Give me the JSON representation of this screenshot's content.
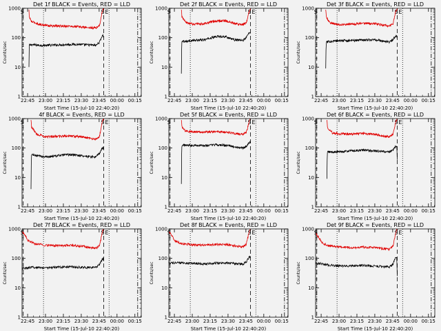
{
  "figure": {
    "ylabel": "Counts/sec",
    "xlabel": "Start Time (15-Jul-10 22:40:20)",
    "x_ticks": [
      "22:45",
      "23:00",
      "23:15",
      "23:30",
      "23:45",
      "00:00",
      "00:15"
    ],
    "y_ticks": [
      "1",
      "10",
      "100",
      "1000"
    ],
    "markers": {
      "s": "S",
      "e": "E"
    },
    "colors": {
      "events": "#000000",
      "lld": "#e00000",
      "axes": "#000000",
      "background": "#f2f2f2"
    }
  },
  "chart_data": [
    {
      "type": "line",
      "title": "Det 1f BLACK = Events, RED = LLD",
      "xlabel": "Start Time (15-Jul-10 22:40:20)",
      "ylabel": "Counts/sec",
      "scale": "log",
      "ylim": [
        1,
        1000
      ],
      "x_unit": "minutes since 22:40:20",
      "x": [
        5.8,
        6,
        8,
        15,
        25,
        35,
        45,
        55,
        62,
        65,
        66,
        67,
        68,
        68.5
      ],
      "series": [
        {
          "name": "Events",
          "values": [
            10,
            55,
            58,
            55,
            56,
            58,
            60,
            57,
            55,
            70,
            90,
            110,
            120,
            100
          ]
        },
        {
          "name": "LLD",
          "values": [
            900,
            500,
            350,
            280,
            250,
            250,
            240,
            220,
            215,
            260,
            400,
            700,
            900,
            1000
          ]
        }
      ],
      "vlines": [
        {
          "x": 1,
          "style": "dash"
        },
        {
          "x": 18,
          "style": "dot"
        },
        {
          "x": 68.5,
          "style": "dash"
        },
        {
          "x": 73,
          "style": "dot"
        },
        {
          "x": 97,
          "style": "dashdot"
        }
      ]
    },
    {
      "type": "line",
      "title": "Det 2f BLACK = Events, RED = LLD",
      "xlabel": "Start Time (15-Jul-10 22:40:20)",
      "ylabel": "Counts/sec",
      "scale": "log",
      "ylim": [
        1,
        1000
      ],
      "x_unit": "minutes since 22:40:20",
      "x": [
        10.5,
        11,
        14,
        20,
        30,
        40,
        47,
        55,
        62,
        65,
        66,
        67,
        68,
        68.5
      ],
      "series": [
        {
          "name": "Events",
          "values": [
            6,
            80,
            75,
            80,
            85,
            110,
            110,
            85,
            80,
            100,
            120,
            140,
            150,
            150
          ]
        },
        {
          "name": "LLD",
          "values": [
            900,
            500,
            330,
            290,
            300,
            370,
            380,
            300,
            280,
            330,
            450,
            700,
            900,
            1000
          ]
        }
      ],
      "vlines": [
        {
          "x": 1,
          "style": "dash"
        },
        {
          "x": 18,
          "style": "dot"
        },
        {
          "x": 68.5,
          "style": "dash"
        },
        {
          "x": 73,
          "style": "dot"
        },
        {
          "x": 97,
          "style": "dashdot"
        }
      ]
    },
    {
      "type": "line",
      "title": "Det 3f BLACK = Events, RED = LLD",
      "xlabel": "Start Time (15-Jul-10 22:40:20)",
      "ylabel": "Counts/sec",
      "scale": "log",
      "ylim": [
        1,
        1000
      ],
      "x_unit": "minutes since 22:40:20",
      "x": [
        8.5,
        9,
        12,
        20,
        30,
        40,
        50,
        58,
        62,
        65,
        66,
        67,
        68,
        68.5
      ],
      "series": [
        {
          "name": "Events",
          "values": [
            9,
            70,
            75,
            80,
            80,
            85,
            85,
            75,
            72,
            85,
            100,
            110,
            115,
            100
          ]
        },
        {
          "name": "LLD",
          "values": [
            900,
            500,
            320,
            280,
            290,
            310,
            300,
            260,
            250,
            300,
            450,
            700,
            900,
            1000
          ]
        }
      ],
      "vlines": [
        {
          "x": 1,
          "style": "dash"
        },
        {
          "x": 18,
          "style": "dot"
        },
        {
          "x": 68.5,
          "style": "dash"
        },
        {
          "x": 73,
          "style": "dot"
        },
        {
          "x": 97,
          "style": "dashdot"
        }
      ]
    },
    {
      "type": "line",
      "title": "4f BLACK = Events, RED = LLD",
      "xlabel": "Start Time (15-Jul-10 22:40:20)",
      "ylabel": "Counts/sec",
      "scale": "log",
      "ylim": [
        1,
        1000
      ],
      "x_unit": "minutes since 22:40:20",
      "x": [
        7.5,
        8,
        12,
        20,
        30,
        40,
        50,
        58,
        62,
        65,
        66,
        67,
        68,
        68.5
      ],
      "series": [
        {
          "name": "Events",
          "values": [
            4,
            60,
            55,
            50,
            55,
            60,
            55,
            50,
            50,
            65,
            80,
            95,
            100,
            90
          ]
        },
        {
          "name": "LLD",
          "values": [
            900,
            500,
            300,
            240,
            250,
            260,
            240,
            210,
            200,
            250,
            400,
            700,
            900,
            1000
          ]
        }
      ],
      "vlines": [
        {
          "x": 1,
          "style": "dash"
        },
        {
          "x": 18,
          "style": "dot"
        },
        {
          "x": 68.5,
          "style": "dash"
        },
        {
          "x": 73,
          "style": "dot"
        },
        {
          "x": 97,
          "style": "dashdot"
        }
      ]
    },
    {
      "type": "line",
      "title": "Det 5f BLACK = Events, RED = LLD",
      "xlabel": "Start Time (15-Jul-10 22:40:20)",
      "ylabel": "Counts/sec",
      "scale": "log",
      "ylim": [
        1,
        1000
      ],
      "x_unit": "minutes since 22:40:20",
      "x": [
        10.5,
        11,
        14,
        20,
        30,
        40,
        50,
        58,
        62,
        65,
        66,
        67,
        68,
        68.5
      ],
      "series": [
        {
          "name": "Events",
          "values": [
            6,
            130,
            125,
            125,
            120,
            130,
            120,
            105,
            100,
            115,
            130,
            150,
            160,
            150
          ]
        },
        {
          "name": "LLD",
          "values": [
            900,
            500,
            380,
            360,
            350,
            360,
            340,
            300,
            290,
            340,
            450,
            700,
            900,
            1000
          ]
        }
      ],
      "vlines": [
        {
          "x": 1,
          "style": "dash"
        },
        {
          "x": 18,
          "style": "dot"
        },
        {
          "x": 68.5,
          "style": "dash"
        },
        {
          "x": 73,
          "style": "dot"
        },
        {
          "x": 97,
          "style": "dashdot"
        }
      ]
    },
    {
      "type": "line",
      "title": "Det 6f BLACK = Events, RED = LLD",
      "xlabel": "Start Time (15-Jul-10 22:40:20)",
      "ylabel": "Counts/sec",
      "scale": "log",
      "ylim": [
        1,
        1000
      ],
      "x_unit": "minutes since 22:40:20",
      "x": [
        9.5,
        10,
        14,
        20,
        30,
        40,
        50,
        58,
        62,
        65,
        66,
        67,
        68,
        68.5
      ],
      "series": [
        {
          "name": "Events",
          "values": [
            9,
            75,
            72,
            75,
            80,
            85,
            80,
            75,
            72,
            85,
            100,
            115,
            120,
            40
          ]
        },
        {
          "name": "LLD",
          "values": [
            900,
            500,
            330,
            300,
            300,
            310,
            290,
            250,
            240,
            300,
            450,
            700,
            900,
            1000
          ]
        }
      ],
      "vlines": [
        {
          "x": 1,
          "style": "dash"
        },
        {
          "x": 18,
          "style": "dot"
        },
        {
          "x": 68.5,
          "style": "dash"
        },
        {
          "x": 73,
          "style": "dot"
        },
        {
          "x": 97,
          "style": "dashdot"
        }
      ]
    },
    {
      "type": "line",
      "title": "Det 7f BLACK = Events, RED = LLD",
      "xlabel": "Start Time (15-Jul-10 22:40:20)",
      "ylabel": "Counts/sec",
      "scale": "log",
      "ylim": [
        1,
        1000
      ],
      "x_unit": "minutes since 22:40:20",
      "x": [
        0,
        5,
        10,
        20,
        30,
        40,
        50,
        58,
        62,
        65,
        66,
        67,
        68,
        68.5
      ],
      "series": [
        {
          "name": "Events",
          "values": [
            45,
            48,
            50,
            48,
            50,
            52,
            50,
            48,
            50,
            60,
            75,
            90,
            100,
            80
          ]
        },
        {
          "name": "LLD",
          "values": [
            800,
            400,
            320,
            280,
            270,
            280,
            260,
            230,
            220,
            270,
            400,
            700,
            900,
            1000
          ]
        }
      ],
      "vlines": [
        {
          "x": 1,
          "style": "dash"
        },
        {
          "x": 18,
          "style": "dot"
        },
        {
          "x": 68.5,
          "style": "dash"
        },
        {
          "x": 73,
          "style": "dot"
        },
        {
          "x": 97,
          "style": "dashdot"
        }
      ]
    },
    {
      "type": "line",
      "title": "Det 8f BLACK = Events, RED = LLD",
      "xlabel": "Start Time (15-Jul-10 22:40:20)",
      "ylabel": "Counts/sec",
      "scale": "log",
      "ylim": [
        1,
        1000
      ],
      "x_unit": "minutes since 22:40:20",
      "x": [
        0,
        5,
        10,
        20,
        30,
        40,
        50,
        58,
        62,
        65,
        66,
        67,
        68,
        68.5
      ],
      "series": [
        {
          "name": "Events",
          "values": [
            70,
            70,
            70,
            68,
            65,
            70,
            70,
            65,
            65,
            75,
            90,
            105,
            115,
            110
          ]
        },
        {
          "name": "LLD",
          "values": [
            800,
            400,
            320,
            290,
            280,
            300,
            290,
            260,
            250,
            300,
            450,
            700,
            900,
            1000
          ]
        }
      ],
      "vlines": [
        {
          "x": 1,
          "style": "dash"
        },
        {
          "x": 18,
          "style": "dot"
        },
        {
          "x": 68.5,
          "style": "dash"
        },
        {
          "x": 73,
          "style": "dot"
        },
        {
          "x": 97,
          "style": "dashdot"
        }
      ]
    },
    {
      "type": "line",
      "title": "Det 9f BLACK = Events, RED = LLD",
      "xlabel": "Start Time (15-Jul-10 22:40:20)",
      "ylabel": "Counts/sec",
      "scale": "log",
      "ylim": [
        1,
        1000
      ],
      "x_unit": "minutes since 22:40:20",
      "x": [
        0,
        5,
        10,
        20,
        30,
        40,
        50,
        58,
        62,
        65,
        66,
        67,
        68,
        68.5
      ],
      "series": [
        {
          "name": "Events",
          "values": [
            70,
            65,
            60,
            55,
            55,
            58,
            55,
            52,
            52,
            65,
            85,
            100,
            110,
            25
          ]
        },
        {
          "name": "LLD",
          "values": [
            700,
            350,
            270,
            240,
            230,
            240,
            230,
            210,
            200,
            260,
            400,
            700,
            900,
            1000
          ]
        }
      ],
      "vlines": [
        {
          "x": 1,
          "style": "dash"
        },
        {
          "x": 18,
          "style": "dot"
        },
        {
          "x": 68.5,
          "style": "dash"
        },
        {
          "x": 73,
          "style": "dot"
        },
        {
          "x": 97,
          "style": "dashdot"
        }
      ]
    }
  ]
}
